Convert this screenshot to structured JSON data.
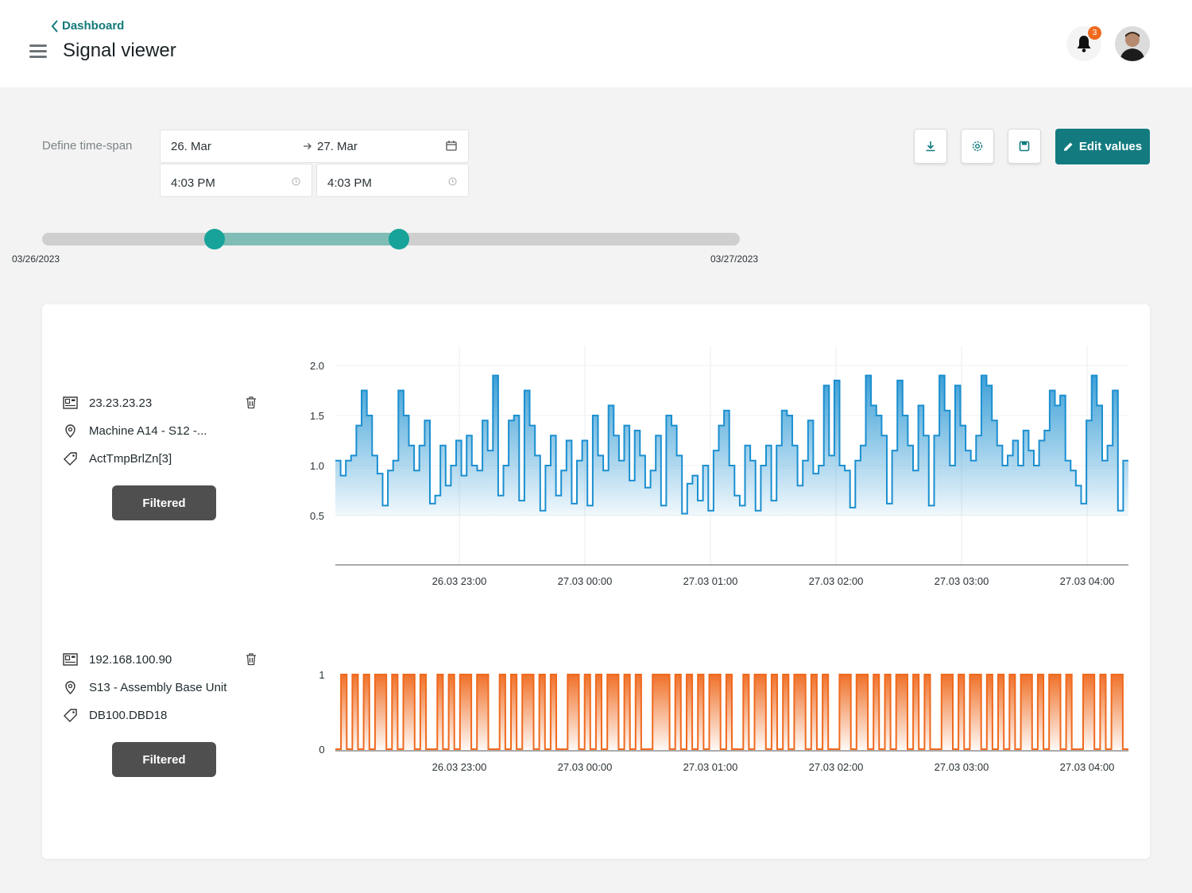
{
  "header": {
    "back_label": "Dashboard",
    "title": "Signal viewer",
    "notification_count": "3"
  },
  "timespan": {
    "label": "Define time-span",
    "start_date": "26. Mar",
    "end_date": "27. Mar",
    "start_time": "4:03 PM",
    "end_time": "4:03 PM"
  },
  "toolbar": {
    "edit_label": "Edit values"
  },
  "slider": {
    "min_label": "03/26/2023",
    "max_label": "03/27/2023",
    "range_start_fraction": 0.247,
    "range_end_fraction": 0.511
  },
  "colors": {
    "accent": "#137b80",
    "signal1": "#1b8fd0",
    "signal2": "#ef6a1f"
  },
  "signals": [
    {
      "ip": "23.23.23.23",
      "location": "Machine A14 - S12 -...",
      "tag": "ActTmpBrlZn[3]",
      "filter_label": "Filtered"
    },
    {
      "ip": "192.168.100.90",
      "location": "S13 - Assembly Base Unit",
      "tag": "DB100.DBD18",
      "filter_label": "Filtered"
    }
  ],
  "chart_data": [
    {
      "type": "line",
      "series": [
        {
          "values": [
            1.05,
            0.9,
            1.05,
            1.1,
            1.4,
            1.75,
            1.5,
            1.1,
            0.92,
            0.6,
            0.95,
            1.05,
            1.75,
            1.5,
            1.2,
            0.95,
            1.2,
            1.45,
            0.62,
            0.7,
            1.2,
            0.8,
            1.0,
            1.25,
            0.9,
            1.3,
            1.0,
            0.95,
            1.45,
            1.15,
            1.9,
            0.7,
            1.0,
            1.45,
            1.5,
            0.65,
            1.75,
            1.4,
            1.1,
            0.55,
            1.0,
            1.3,
            0.7,
            0.95,
            1.25,
            0.62,
            1.05,
            1.25,
            0.6,
            1.5,
            1.1,
            0.95,
            1.6,
            1.3,
            1.05,
            1.4,
            0.85,
            1.35,
            1.1,
            0.78,
            0.95,
            1.3,
            0.6,
            1.5,
            1.4,
            1.1,
            0.52,
            0.82,
            0.9,
            0.65,
            1.0,
            0.55,
            1.15,
            1.4,
            1.55,
            1.0,
            0.7,
            0.6,
            1.2,
            1.05,
            0.55,
            1.0,
            1.2,
            0.65,
            1.2,
            1.55,
            1.5,
            1.2,
            0.8,
            1.05,
            1.45,
            0.92,
            1.0,
            1.8,
            1.1,
            1.85,
            1.0,
            0.95,
            0.58,
            1.05,
            1.2,
            1.9,
            1.6,
            1.5,
            1.3,
            0.62,
            1.15,
            1.85,
            1.5,
            1.2,
            0.95,
            1.6,
            1.3,
            0.6,
            1.3,
            1.9,
            1.55,
            1.0,
            1.8,
            1.4,
            1.15,
            1.05,
            1.3,
            1.9,
            1.8,
            1.45,
            1.2,
            1.0,
            1.1,
            1.25,
            1.0,
            1.35,
            1.15,
            1.0,
            1.25,
            1.35,
            1.75,
            1.6,
            1.7,
            1.05,
            0.95,
            0.8,
            0.62,
            1.45,
            1.9,
            1.6,
            1.05,
            1.2,
            1.75,
            0.55,
            1.05
          ]
        }
      ],
      "x_ticks": [
        "26.03 23:00",
        "27.03 00:00",
        "27.03 01:00",
        "27.03 02:00",
        "27.03 03:00",
        "27.03 04:00"
      ],
      "y_ticks": [
        "0.5",
        "1.0",
        "1.5",
        "2.0"
      ],
      "ylim": [
        0.5,
        2.0
      ]
    },
    {
      "type": "area",
      "series": [
        {
          "values": [
            0,
            1,
            0,
            1,
            0,
            1,
            0,
            1,
            1,
            0,
            1,
            0,
            1,
            1,
            0,
            1,
            0,
            0,
            1,
            0,
            1,
            0,
            1,
            1,
            0,
            1,
            1,
            0,
            0,
            1,
            0,
            1,
            0,
            1,
            1,
            0,
            1,
            0,
            1,
            0,
            0,
            1,
            1,
            0,
            1,
            0,
            1,
            0,
            1,
            1,
            0,
            1,
            0,
            1,
            0,
            0,
            1,
            1,
            1,
            0,
            1,
            0,
            1,
            0,
            1,
            0,
            1,
            1,
            0,
            1,
            0,
            0,
            1,
            0,
            1,
            1,
            0,
            1,
            0,
            1,
            0,
            1,
            1,
            0,
            1,
            0,
            1,
            0,
            0,
            1,
            1,
            0,
            1,
            1,
            0,
            1,
            0,
            1,
            0,
            1,
            1,
            0,
            1,
            0,
            1,
            0,
            0,
            1,
            1,
            0,
            1,
            0,
            1,
            1,
            0,
            1,
            0,
            1,
            0,
            1,
            0,
            1,
            1,
            0,
            1,
            0,
            1,
            1,
            0,
            1,
            0,
            0,
            1,
            1,
            0,
            1,
            0,
            1,
            1,
            0
          ]
        }
      ],
      "x_ticks": [
        "26.03 23:00",
        "27.03 00:00",
        "27.03 01:00",
        "27.03 02:00",
        "27.03 03:00",
        "27.03 04:00"
      ],
      "y_ticks": [
        "0",
        "1"
      ],
      "ylim": [
        0,
        1
      ]
    }
  ]
}
